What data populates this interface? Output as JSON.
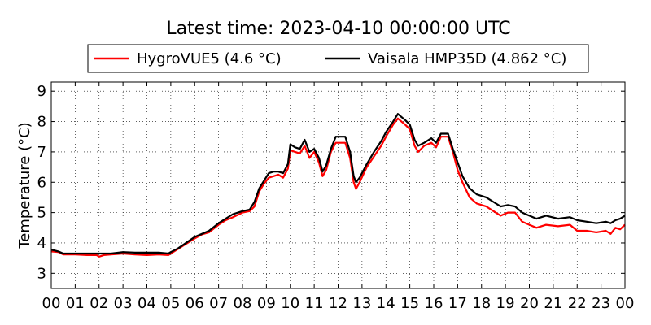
{
  "chart_data": {
    "type": "line",
    "title": "Latest time: 2023-04-10 00:00:00 UTC",
    "xlabel": "",
    "ylabel": "Temperature (°C)",
    "xlim": [
      0,
      24
    ],
    "ylim": [
      2.5,
      9.3
    ],
    "x_ticks": [
      "00",
      "01",
      "02",
      "03",
      "04",
      "05",
      "06",
      "07",
      "08",
      "09",
      "10",
      "11",
      "12",
      "13",
      "14",
      "15",
      "16",
      "17",
      "18",
      "19",
      "20",
      "21",
      "22",
      "23",
      "00"
    ],
    "y_ticks": [
      3,
      4,
      5,
      6,
      7,
      8,
      9
    ],
    "grid": true,
    "legend_position": "top-center",
    "series": [
      {
        "name": "HygroVUE5 (4.6 °C)",
        "color": "#ff0000",
        "points": [
          [
            0,
            3.72
          ],
          [
            0.3,
            3.7
          ],
          [
            0.5,
            3.62
          ],
          [
            1,
            3.62
          ],
          [
            1.5,
            3.6
          ],
          [
            1.9,
            3.6
          ],
          [
            2,
            3.55
          ],
          [
            2.2,
            3.6
          ],
          [
            2.5,
            3.62
          ],
          [
            3,
            3.65
          ],
          [
            3.5,
            3.62
          ],
          [
            4,
            3.6
          ],
          [
            4.5,
            3.62
          ],
          [
            4.9,
            3.6
          ],
          [
            5,
            3.65
          ],
          [
            5.3,
            3.8
          ],
          [
            5.6,
            3.95
          ],
          [
            6,
            4.15
          ],
          [
            6.3,
            4.28
          ],
          [
            6.6,
            4.35
          ],
          [
            7,
            4.6
          ],
          [
            7.3,
            4.75
          ],
          [
            7.6,
            4.85
          ],
          [
            8,
            5.0
          ],
          [
            8.3,
            5.05
          ],
          [
            8.5,
            5.2
          ],
          [
            8.7,
            5.7
          ],
          [
            8.9,
            5.95
          ],
          [
            9.1,
            6.15
          ],
          [
            9.3,
            6.2
          ],
          [
            9.5,
            6.25
          ],
          [
            9.7,
            6.15
          ],
          [
            9.9,
            6.45
          ],
          [
            10.0,
            7.05
          ],
          [
            10.2,
            7.0
          ],
          [
            10.4,
            6.95
          ],
          [
            10.6,
            7.2
          ],
          [
            10.8,
            6.8
          ],
          [
            11.0,
            7.0
          ],
          [
            11.2,
            6.65
          ],
          [
            11.35,
            6.2
          ],
          [
            11.5,
            6.4
          ],
          [
            11.7,
            7.0
          ],
          [
            11.9,
            7.3
          ],
          [
            12.1,
            7.3
          ],
          [
            12.3,
            7.3
          ],
          [
            12.5,
            6.8
          ],
          [
            12.65,
            6.0
          ],
          [
            12.75,
            5.78
          ],
          [
            12.9,
            6.0
          ],
          [
            13.2,
            6.5
          ],
          [
            13.5,
            6.85
          ],
          [
            13.8,
            7.2
          ],
          [
            14.0,
            7.5
          ],
          [
            14.3,
            7.9
          ],
          [
            14.5,
            8.1
          ],
          [
            14.8,
            7.9
          ],
          [
            15.0,
            7.75
          ],
          [
            15.2,
            7.2
          ],
          [
            15.35,
            7.0
          ],
          [
            15.6,
            7.2
          ],
          [
            15.9,
            7.3
          ],
          [
            16.1,
            7.15
          ],
          [
            16.3,
            7.5
          ],
          [
            16.6,
            7.5
          ],
          [
            16.8,
            7.0
          ],
          [
            17.0,
            6.4
          ],
          [
            17.2,
            6.0
          ],
          [
            17.5,
            5.5
          ],
          [
            17.8,
            5.3
          ],
          [
            18.2,
            5.2
          ],
          [
            18.5,
            5.05
          ],
          [
            18.8,
            4.9
          ],
          [
            19.1,
            5.0
          ],
          [
            19.4,
            5.0
          ],
          [
            19.7,
            4.7
          ],
          [
            20.0,
            4.6
          ],
          [
            20.3,
            4.5
          ],
          [
            20.7,
            4.6
          ],
          [
            21.2,
            4.55
          ],
          [
            21.7,
            4.6
          ],
          [
            22.0,
            4.4
          ],
          [
            22.4,
            4.4
          ],
          [
            22.8,
            4.35
          ],
          [
            23.2,
            4.4
          ],
          [
            23.4,
            4.3
          ],
          [
            23.6,
            4.5
          ],
          [
            23.8,
            4.45
          ],
          [
            24.0,
            4.6
          ]
        ]
      },
      {
        "name": "Vaisala HMP35D (4.862 °C)",
        "color": "#000000",
        "points": [
          [
            0,
            3.78
          ],
          [
            0.3,
            3.72
          ],
          [
            0.5,
            3.65
          ],
          [
            1,
            3.65
          ],
          [
            1.5,
            3.65
          ],
          [
            2,
            3.65
          ],
          [
            2.5,
            3.65
          ],
          [
            3,
            3.7
          ],
          [
            3.5,
            3.68
          ],
          [
            4,
            3.68
          ],
          [
            4.5,
            3.68
          ],
          [
            4.9,
            3.65
          ],
          [
            5,
            3.7
          ],
          [
            5.3,
            3.82
          ],
          [
            5.6,
            3.98
          ],
          [
            6,
            4.2
          ],
          [
            6.3,
            4.3
          ],
          [
            6.6,
            4.4
          ],
          [
            7,
            4.65
          ],
          [
            7.3,
            4.8
          ],
          [
            7.6,
            4.95
          ],
          [
            8,
            5.05
          ],
          [
            8.3,
            5.1
          ],
          [
            8.5,
            5.35
          ],
          [
            8.7,
            5.8
          ],
          [
            8.9,
            6.05
          ],
          [
            9.1,
            6.3
          ],
          [
            9.3,
            6.35
          ],
          [
            9.5,
            6.35
          ],
          [
            9.7,
            6.3
          ],
          [
            9.9,
            6.6
          ],
          [
            10.0,
            7.25
          ],
          [
            10.2,
            7.15
          ],
          [
            10.4,
            7.1
          ],
          [
            10.6,
            7.4
          ],
          [
            10.8,
            7.0
          ],
          [
            11.0,
            7.1
          ],
          [
            11.2,
            6.8
          ],
          [
            11.35,
            6.35
          ],
          [
            11.5,
            6.55
          ],
          [
            11.7,
            7.1
          ],
          [
            11.9,
            7.5
          ],
          [
            12.1,
            7.5
          ],
          [
            12.3,
            7.5
          ],
          [
            12.5,
            7.0
          ],
          [
            12.65,
            6.2
          ],
          [
            12.75,
            6.0
          ],
          [
            12.9,
            6.15
          ],
          [
            13.2,
            6.6
          ],
          [
            13.5,
            7.0
          ],
          [
            13.8,
            7.35
          ],
          [
            14.0,
            7.65
          ],
          [
            14.3,
            8.0
          ],
          [
            14.5,
            8.25
          ],
          [
            14.8,
            8.05
          ],
          [
            15.0,
            7.9
          ],
          [
            15.2,
            7.4
          ],
          [
            15.35,
            7.2
          ],
          [
            15.6,
            7.3
          ],
          [
            15.9,
            7.45
          ],
          [
            16.1,
            7.3
          ],
          [
            16.3,
            7.6
          ],
          [
            16.6,
            7.6
          ],
          [
            16.8,
            7.1
          ],
          [
            17.0,
            6.65
          ],
          [
            17.2,
            6.2
          ],
          [
            17.5,
            5.8
          ],
          [
            17.8,
            5.6
          ],
          [
            18.2,
            5.5
          ],
          [
            18.5,
            5.35
          ],
          [
            18.8,
            5.2
          ],
          [
            19.1,
            5.25
          ],
          [
            19.4,
            5.2
          ],
          [
            19.7,
            5.0
          ],
          [
            20.0,
            4.9
          ],
          [
            20.3,
            4.8
          ],
          [
            20.7,
            4.9
          ],
          [
            21.2,
            4.8
          ],
          [
            21.7,
            4.85
          ],
          [
            22.0,
            4.75
          ],
          [
            22.4,
            4.7
          ],
          [
            22.8,
            4.65
          ],
          [
            23.2,
            4.7
          ],
          [
            23.4,
            4.65
          ],
          [
            23.6,
            4.75
          ],
          [
            23.8,
            4.8
          ],
          [
            24.0,
            4.9
          ]
        ]
      }
    ]
  }
}
